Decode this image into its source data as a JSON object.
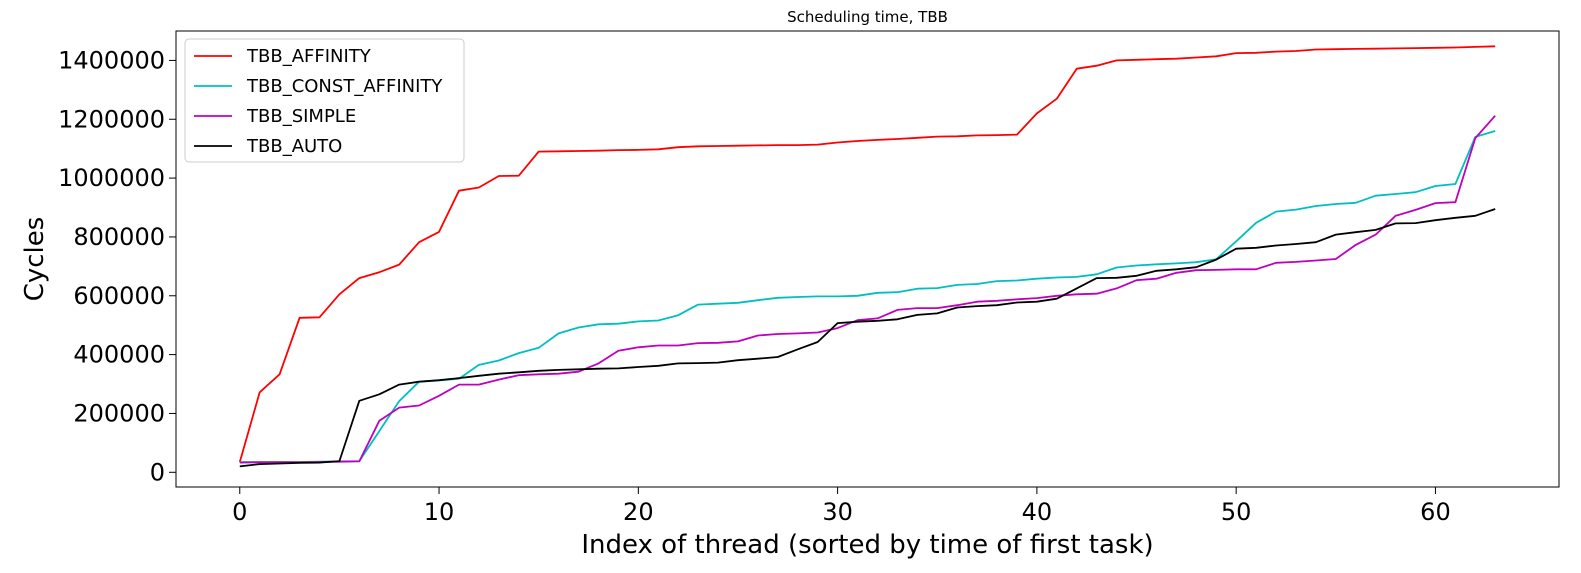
{
  "chart_data": {
    "type": "line",
    "title": "Scheduling time, TBB",
    "xlabel": "Index of thread (sorted by time of first task)",
    "ylabel": "Cycles",
    "xlim": [
      -3.2,
      66.2
    ],
    "ylim": [
      -50000,
      1500000
    ],
    "xticks": [
      0,
      10,
      20,
      30,
      40,
      50,
      60
    ],
    "yticks": [
      0,
      200000,
      400000,
      600000,
      800000,
      1000000,
      1200000,
      1400000
    ],
    "grid": false,
    "legend_position": "top-left",
    "series": [
      {
        "name": "TBB_AFFINITY",
        "color": "#ff0000",
        "values": [
          35000,
          272000,
          333000,
          525000,
          527000,
          605000,
          660000,
          680000,
          706000,
          782000,
          817000,
          957000,
          968000,
          1007000,
          1008000,
          1090000,
          1091000,
          1092000,
          1093000,
          1095000,
          1096000,
          1098000,
          1105000,
          1108000,
          1109000,
          1110000,
          1111000,
          1112000,
          1112000,
          1114000,
          1121000,
          1126000,
          1130000,
          1133000,
          1137000,
          1141000,
          1142000,
          1145000,
          1146000,
          1148000,
          1220000,
          1270000,
          1372000,
          1382000,
          1400000,
          1402000,
          1404000,
          1406000,
          1410000,
          1414000,
          1425000,
          1426000,
          1430000,
          1432000,
          1437000,
          1438000,
          1439000,
          1440000,
          1441000,
          1442000,
          1443000,
          1444000,
          1446000,
          1448000
        ]
      },
      {
        "name": "TBB_CONST_AFFINITY",
        "color": "#00bfbf",
        "values": [
          35000,
          35000,
          35000,
          35000,
          36000,
          37000,
          38000,
          140000,
          242000,
          308000,
          312000,
          318000,
          365000,
          380000,
          405000,
          423000,
          472000,
          492000,
          503000,
          505000,
          513000,
          516000,
          534000,
          570000,
          573000,
          576000,
          585000,
          593000,
          596000,
          598000,
          598000,
          600000,
          610000,
          612000,
          624000,
          626000,
          637000,
          640000,
          650000,
          652000,
          658000,
          662000,
          664000,
          673000,
          696000,
          703000,
          707000,
          710000,
          714000,
          724000,
          785000,
          848000,
          886000,
          893000,
          905000,
          912000,
          916000,
          940000,
          946000,
          952000,
          973000,
          980000,
          1140000,
          1160000
        ]
      },
      {
        "name": "TBB_SIMPLE",
        "color": "#bf00bf",
        "values": [
          33000,
          34000,
          34000,
          34000,
          35000,
          36000,
          37000,
          175000,
          220000,
          227000,
          260000,
          298000,
          298000,
          315000,
          330000,
          333000,
          335000,
          342000,
          370000,
          413000,
          425000,
          431000,
          431000,
          439000,
          440000,
          445000,
          465000,
          470000,
          472000,
          475000,
          490000,
          517000,
          523000,
          552000,
          558000,
          558000,
          568000,
          580000,
          583000,
          588000,
          592000,
          600000,
          605000,
          607000,
          625000,
          653000,
          658000,
          678000,
          687000,
          688000,
          690000,
          690000,
          712000,
          715000,
          720000,
          725000,
          773000,
          808000,
          872000,
          892000,
          915000,
          918000,
          1136000,
          1212000
        ]
      },
      {
        "name": "TBB_AUTO",
        "color": "#000000",
        "values": [
          20000,
          28000,
          30000,
          32000,
          33000,
          38000,
          243000,
          265000,
          298000,
          308000,
          313000,
          320000,
          328000,
          335000,
          340000,
          345000,
          348000,
          350000,
          352000,
          353000,
          358000,
          362000,
          370000,
          371000,
          373000,
          381000,
          386000,
          392000,
          418000,
          443000,
          507000,
          512000,
          515000,
          520000,
          535000,
          540000,
          560000,
          565000,
          568000,
          577000,
          580000,
          590000,
          625000,
          660000,
          661000,
          668000,
          685000,
          690000,
          697000,
          723000,
          760000,
          763000,
          771000,
          776000,
          782000,
          808000,
          816000,
          824000,
          846000,
          847000,
          857000,
          865000,
          872000,
          895000
        ]
      }
    ]
  }
}
